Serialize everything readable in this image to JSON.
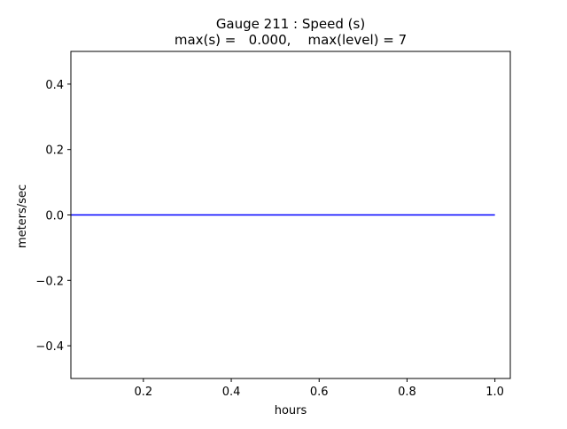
{
  "chart_data": {
    "type": "line",
    "title_line1": "Gauge 211 : Speed (s)",
    "title_line2": "max(s) =   0.000,    max(level) = 7",
    "xlabel": "hours",
    "ylabel": "meters/sec",
    "xlim": [
      0.035,
      1.035
    ],
    "ylim": [
      -0.5,
      0.5
    ],
    "xticks": [
      0.2,
      0.4,
      0.6,
      0.8,
      1.0
    ],
    "xtick_labels": [
      "0.2",
      "0.4",
      "0.6",
      "0.8",
      "1.0"
    ],
    "yticks": [
      -0.4,
      -0.2,
      0.0,
      0.2,
      0.4
    ],
    "ytick_labels": [
      "−0.4",
      "−0.2",
      "0.0",
      "0.2",
      "0.4"
    ],
    "grid": false,
    "series": [
      {
        "color": "#0000ff",
        "x": [
          0.035,
          0.1,
          0.2,
          0.3,
          0.4,
          0.5,
          0.6,
          0.7,
          0.8,
          0.9,
          1.0
        ],
        "y": [
          0,
          0,
          0,
          0,
          0,
          0,
          0,
          0,
          0,
          0,
          0
        ]
      }
    ]
  }
}
